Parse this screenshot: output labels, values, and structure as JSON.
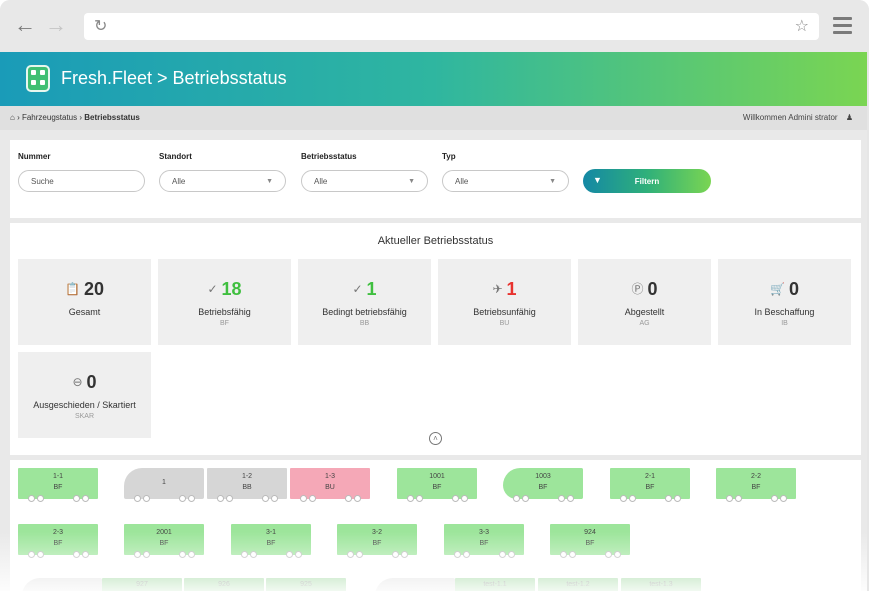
{
  "browser": {
    "back_icon": "arrow-left-icon",
    "forward_icon": "arrow-right-icon",
    "reload_icon": "reload-icon",
    "bookmark_icon": "star-icon",
    "menu_icon": "hamburger-icon",
    "url": ""
  },
  "header": {
    "title": "Fresh.Fleet > Betriebsstatus",
    "gradient_start": "#1a9bb8",
    "gradient_end": "#7ad552"
  },
  "breadcrumb": {
    "home_icon": "home-icon",
    "items": [
      "Fahrzeugstatus",
      "Betriebsstatus"
    ],
    "welcome": "Willkommen Admini strator",
    "user_icon": "user-icon"
  },
  "filters": {
    "fields": [
      {
        "label": "Nummer",
        "value": "",
        "placeholder": "Suche"
      },
      {
        "label": "Standort",
        "value": "Alle"
      },
      {
        "label": "Betriebsstatus",
        "value": "Alle"
      },
      {
        "label": "Typ",
        "value": "Alle"
      }
    ],
    "button_label": "Filtern"
  },
  "status": {
    "title": "Aktueller Betriebsstatus",
    "cards": [
      {
        "icon": "clipboard-icon",
        "count": "20",
        "label": "Gesamt",
        "code": ""
      },
      {
        "icon": "check-circle-icon",
        "count": "18",
        "label": "Betriebsfähig",
        "code": "BF",
        "color": "#3fbf3f"
      },
      {
        "icon": "check-circle-icon",
        "count": "1",
        "label": "Bedingt betriebsfähig",
        "code": "BB",
        "color": "#3fbf3f"
      },
      {
        "icon": "car-crash-icon",
        "count": "1",
        "label": "Betriebsunfähig",
        "code": "BU",
        "color": "#e8322e"
      },
      {
        "icon": "parking-icon",
        "count": "0",
        "label": "Abgestellt",
        "code": "AG"
      },
      {
        "icon": "cart-icon",
        "count": "0",
        "label": "In Beschaffung",
        "code": "IB"
      },
      {
        "icon": "minus-circle-icon",
        "count": "0",
        "label": "Ausgeschieden / Skartiert",
        "code": "SKAR"
      }
    ]
  },
  "vehicles": {
    "row1": [
      {
        "number": "1-1",
        "status": "BF"
      },
      {
        "number": "1",
        "status": ""
      },
      {
        "number": "1-2",
        "status": "BB"
      },
      {
        "number": "1-3",
        "status": "BU"
      },
      {
        "number": "1001",
        "status": "BF"
      },
      {
        "number": "1003",
        "status": "BF"
      },
      {
        "number": "2-1",
        "status": "BF"
      },
      {
        "number": "2-2",
        "status": "BF"
      }
    ],
    "row2": [
      {
        "number": "2-3",
        "status": "BF"
      },
      {
        "number": "2001",
        "status": "BF"
      },
      {
        "number": "3-1",
        "status": "BF"
      },
      {
        "number": "3-2",
        "status": "BF"
      },
      {
        "number": "3-3",
        "status": "BF"
      },
      {
        "number": "924",
        "status": "BF"
      }
    ],
    "row3": [
      {
        "number": "927"
      },
      {
        "number": "926"
      },
      {
        "number": "925"
      },
      {
        "number": "test-1.1"
      },
      {
        "number": "test-1.2"
      },
      {
        "number": "test-1.3"
      }
    ]
  }
}
